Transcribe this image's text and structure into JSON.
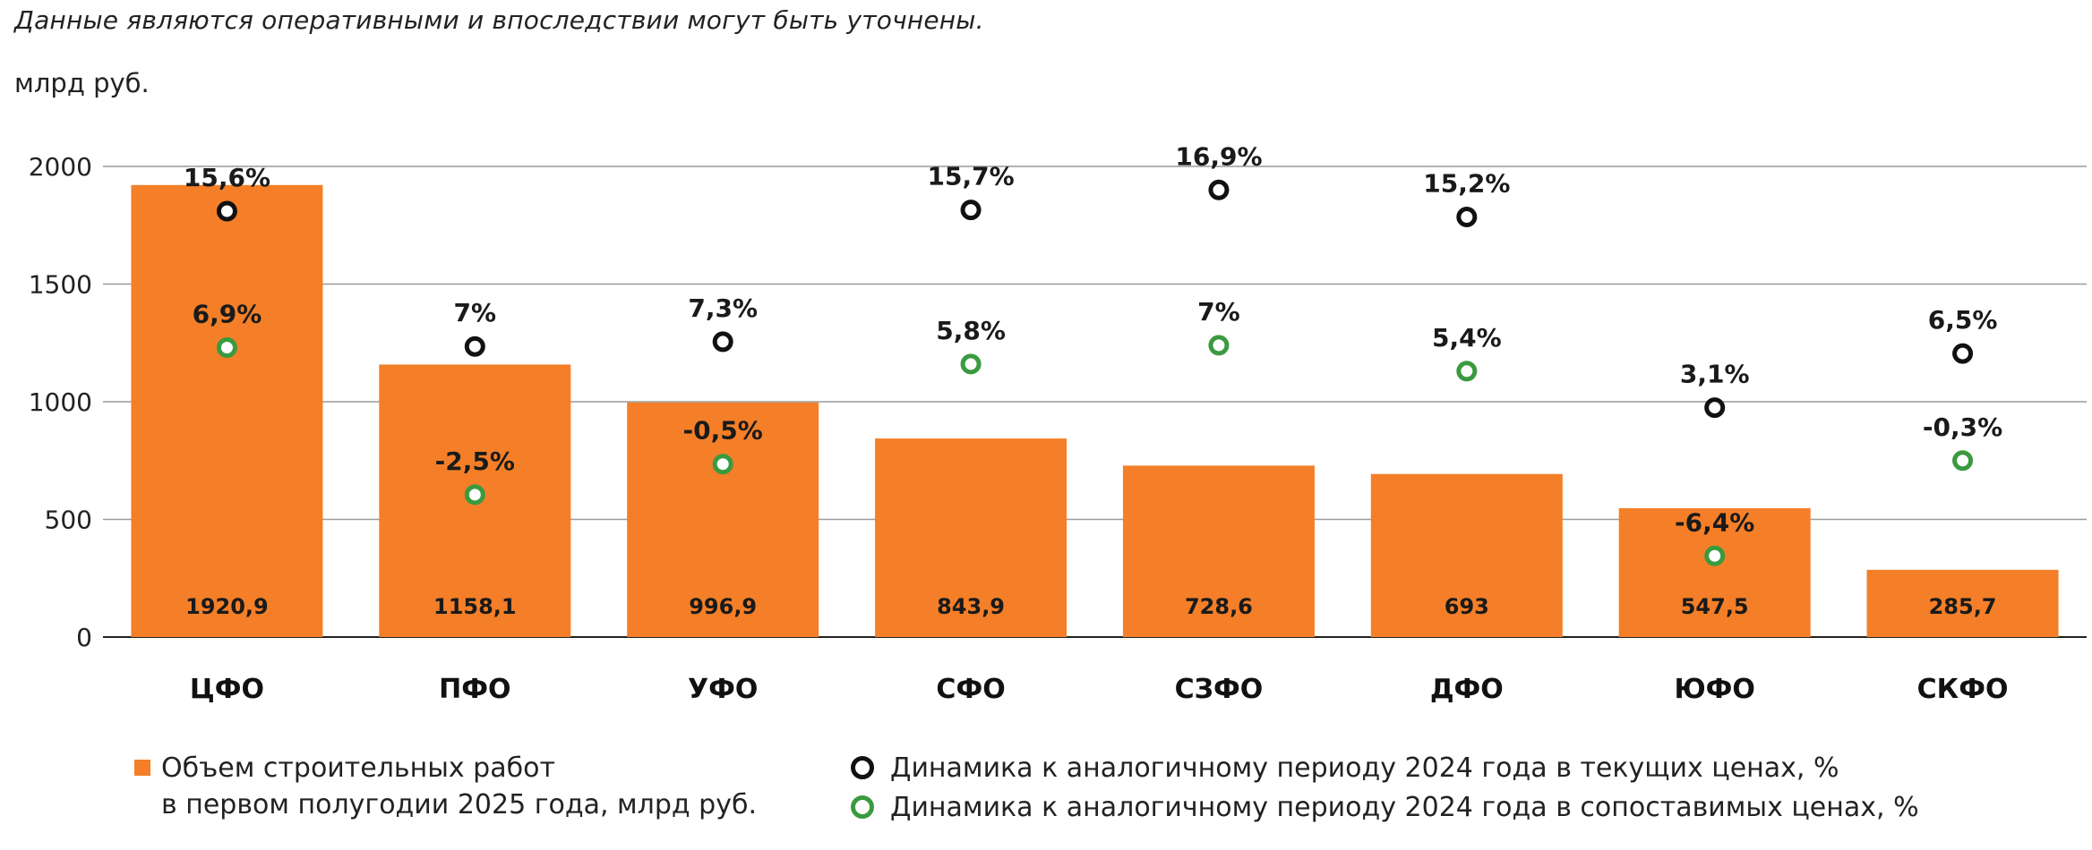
{
  "note": "Данные являются оперативными и впоследствии могут быть уточнены.",
  "unit_label": "млрд руб.",
  "colors": {
    "bar": "#F47F28",
    "current_marker": "#111111",
    "comparable_marker": "#3A9A3F",
    "grid": "#9a9a9a"
  },
  "chart_data": {
    "type": "bar",
    "categories": [
      "ЦФО",
      "ПФО",
      "УФО",
      "СФО",
      "СЗФО",
      "ДФО",
      "ЮФО",
      "СКФО"
    ],
    "ylim": [
      0,
      2000
    ],
    "yticks": [
      0,
      500,
      1000,
      1500,
      2000
    ],
    "ytick_labels": [
      "0",
      "500",
      "1000",
      "1500",
      "2000"
    ],
    "grid": true,
    "legend_position": "bottom",
    "bars": {
      "name": "Объем строительных работ в первом полугодии 2025 года, млрд руб.",
      "values": [
        1920.9,
        1158.1,
        996.9,
        843.9,
        728.6,
        693,
        547.5,
        285.7
      ],
      "labels": [
        "1920,9",
        "1158,1",
        "996,9",
        "843,9",
        "728,6",
        "693",
        "547,5",
        "285,7"
      ]
    },
    "series": [
      {
        "name": "Динамика к аналогичному периоду 2024 года в текущих ценах, %",
        "values": [
          15.6,
          7,
          7.3,
          15.7,
          16.9,
          15.2,
          3.1,
          6.5
        ],
        "labels": [
          "15,6%",
          "7%",
          "7,3%",
          "15,7%",
          "16,9%",
          "15,2%",
          "3,1%",
          "6,5%"
        ],
        "marker_y": [
          1810,
          1235,
          1255,
          1815,
          1900,
          1785,
          975,
          1205
        ]
      },
      {
        "name": "Динамика к аналогичному периоду 2024 года в сопоставимых ценах, %",
        "values": [
          6.9,
          -2.5,
          -0.5,
          5.8,
          7,
          5.4,
          -6.4,
          -0.3
        ],
        "labels": [
          "6,9%",
          "-2,5%",
          "-0,5%",
          "5,8%",
          "7%",
          "5,4%",
          "-6,4%",
          "-0,3%"
        ],
        "marker_y": [
          1230,
          605,
          735,
          1160,
          1240,
          1130,
          345,
          750
        ]
      }
    ]
  },
  "legend": {
    "bars_line1": "Объем строительных работ",
    "bars_line2": "в первом полугодии 2025 года, млрд руб.",
    "current": "Динамика к аналогичному периоду 2024 года в текущих ценах, %",
    "comparable": "Динамика к аналогичному периоду 2024 года в сопоставимых ценах, %"
  }
}
